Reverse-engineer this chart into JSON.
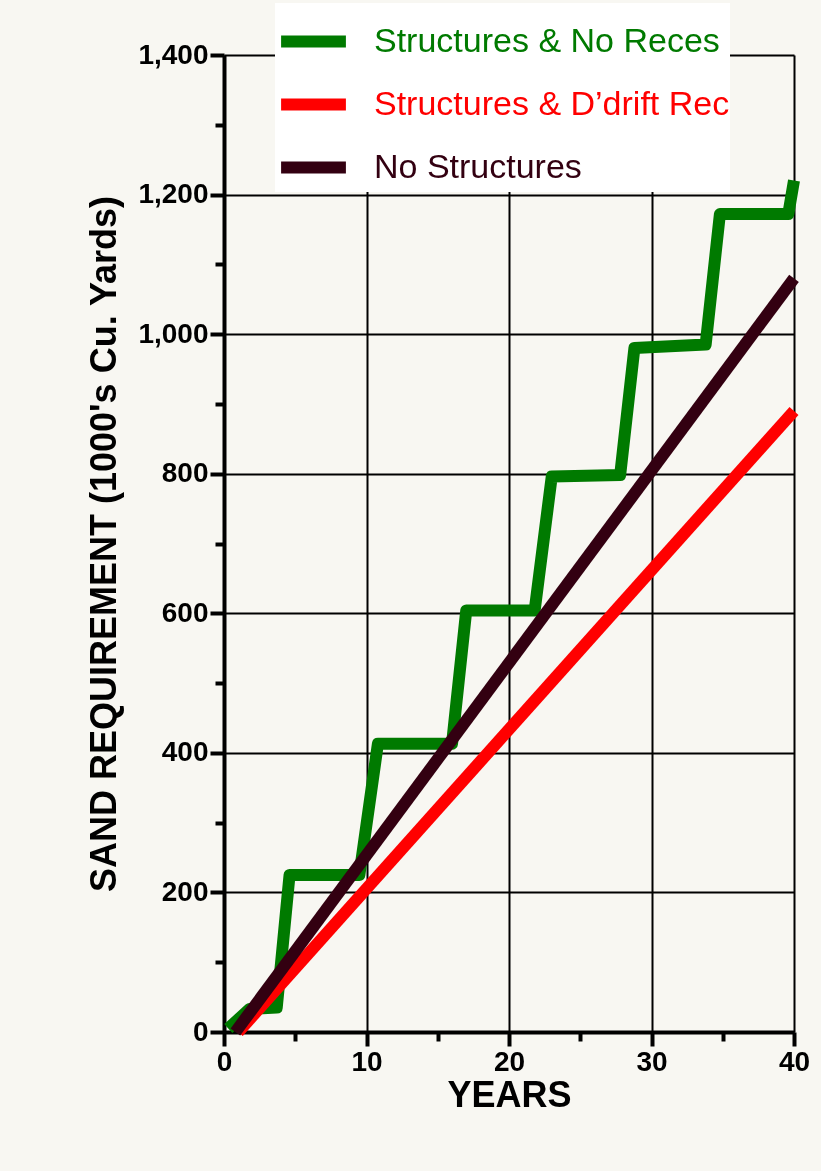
{
  "chart_data": {
    "type": "line",
    "xlabel": "YEARS",
    "ylabel": "SAND REQUIREMENT (1000's Cu. Yards)",
    "xlim": [
      0,
      40
    ],
    "ylim": [
      0,
      1400
    ],
    "xticks": [
      0,
      {
        "value": 5,
        "label": null
      },
      10,
      {
        "value": 15,
        "label": null
      },
      20,
      {
        "value": 25,
        "label": null
      },
      30,
      {
        "value": 35,
        "label": null
      },
      40
    ],
    "yticks": [
      0,
      {
        "value": 100,
        "label": null
      },
      200,
      {
        "value": 300,
        "label": null
      },
      400,
      {
        "value": 500,
        "label": null
      },
      600,
      {
        "value": 700,
        "label": null
      },
      800,
      {
        "value": 900,
        "label": null
      },
      {
        "value": 1000,
        "label": "1,000"
      },
      {
        "value": 1100,
        "label": null
      },
      {
        "value": 1200,
        "label": "1,200"
      },
      {
        "value": 1300,
        "label": null
      },
      {
        "value": 1400,
        "label": "1,400"
      }
    ],
    "grid": true,
    "legend": "top",
    "line_style": "solid",
    "series": [
      {
        "name": "Structures & No Reces",
        "color": "#007a00",
        "x": [
          0.3,
          1.8,
          3.7,
          4.6,
          9.5,
          10.8,
          16,
          17,
          21.8,
          23,
          27.8,
          28.8,
          33.8,
          34.8,
          39.6,
          40
        ],
        "values": [
          5,
          33,
          35,
          225,
          225,
          413,
          413,
          604,
          604,
          796,
          798,
          980,
          985,
          1172,
          1172,
          1220
        ]
      },
      {
        "name": "Structures & D’drift Rec",
        "color": "#ff0000",
        "x": [
          1,
          40
        ],
        "values": [
          0,
          890
        ]
      },
      {
        "name": "No Structures",
        "color": "#330011",
        "x": [
          0.8,
          40
        ],
        "values": [
          0,
          1080
        ]
      }
    ]
  }
}
